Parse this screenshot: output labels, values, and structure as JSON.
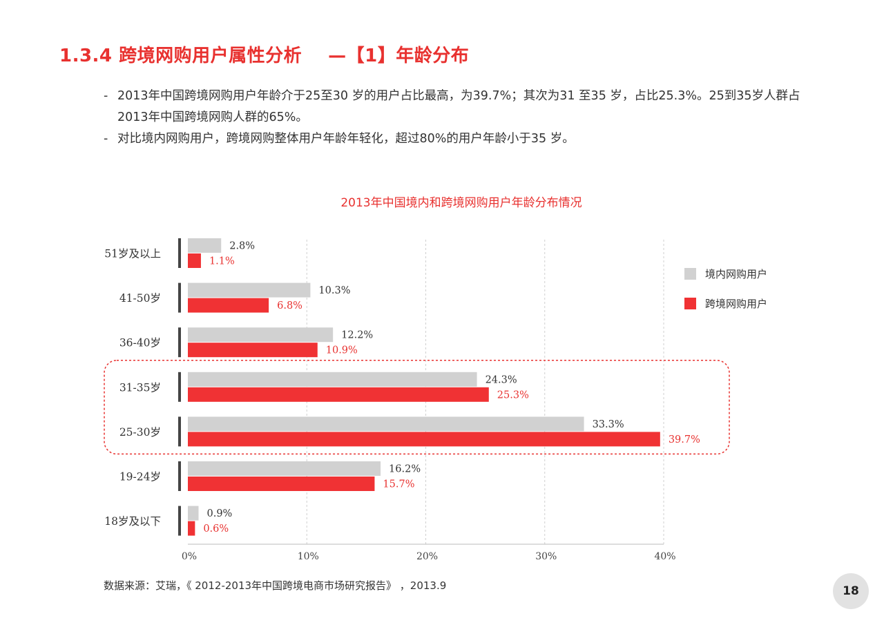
{
  "header": {
    "section_number": "1.3.4",
    "title": "跨境网购用户属性分析",
    "subtitle": "—【1】年龄分布"
  },
  "bullets": [
    "2013年中国跨境网购用户年龄介于25至30 岁的用户占比最高，为39.7%；其次为31 至35 岁，占比25.3%。25到35岁人群占2013年中国跨境网购人群的65%。",
    "对比境内网购用户，跨境网购整体用户年龄年轻化，超过80%的用户年龄小于35 岁。"
  ],
  "chart_data": {
    "type": "bar",
    "orientation": "horizontal",
    "title": "2013年中国境内和跨境网购用户年龄分布情况",
    "categories": [
      "51岁及以上",
      "41-50岁",
      "36-40岁",
      "31-35岁",
      "25-30岁",
      "19-24岁",
      "18岁及以下"
    ],
    "series": [
      {
        "name": "境内网购用户",
        "color": "#d1d1d1",
        "label_color": "#333333",
        "values": [
          2.8,
          10.3,
          12.2,
          24.3,
          33.3,
          16.2,
          0.9
        ],
        "labels": [
          "2.8%",
          "10.3%",
          "12.2%",
          "24.3%",
          "33.3%",
          "16.2%",
          "0.9%"
        ]
      },
      {
        "name": "跨境网购用户",
        "color": "#f03234",
        "label_color": "#e8312f",
        "values": [
          1.1,
          6.8,
          10.9,
          25.3,
          39.7,
          15.7,
          0.6
        ],
        "labels": [
          "1.1%",
          "6.8%",
          "10.9%",
          "25.3%",
          "39.7%",
          "15.7%",
          "0.6%"
        ]
      }
    ],
    "xlim": [
      0,
      40
    ],
    "xticks": [
      0,
      10,
      20,
      30,
      40
    ],
    "xtick_labels": [
      "0%",
      "10%",
      "20%",
      "30%",
      "40%"
    ],
    "grid": "vertical dashed",
    "legend": "right",
    "highlight": {
      "categories": [
        "31-35岁",
        "25-30岁"
      ],
      "style": "red dashed rounded box"
    }
  },
  "footer": {
    "source": "数据来源：艾瑞，《 2012-2013年中国跨境电商市场研究报告》 ，2013.9",
    "page_number": "18"
  }
}
